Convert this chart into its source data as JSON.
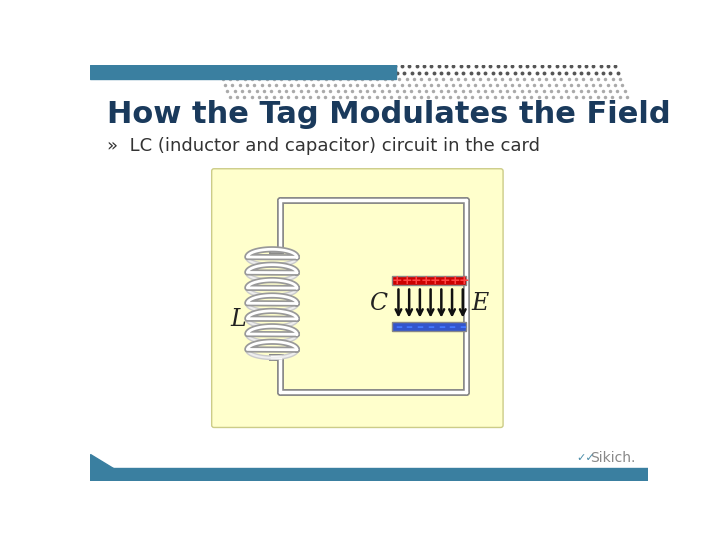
{
  "title": "How the Tag Modulates the Field",
  "bullet": "»  LC (inductor and capacitor) circuit in the card",
  "title_color": "#1a3a5c",
  "bullet_color": "#333333",
  "bg_color": "#ffffff",
  "header_bar_color": "#3a7fa0",
  "dot_color_dark": "#555555",
  "dot_color_light": "#aaaaaa",
  "diagram_bg": "#ffffcc",
  "diagram_border": "#cccc88",
  "circuit_outer_color": "#888888",
  "circuit_inner_color": "#ffffff",
  "cap_top_color": "#cc0000",
  "cap_bot_color": "#3355cc",
  "cap_border_color": "#888888",
  "arrow_color": "#111111",
  "plus_color": "#ff4444",
  "dash_color": "#4477ff",
  "label_L": "L",
  "label_C": "C",
  "label_E": "E",
  "footer_bar_color": "#3a7fa0",
  "sikich_color": "#888888"
}
